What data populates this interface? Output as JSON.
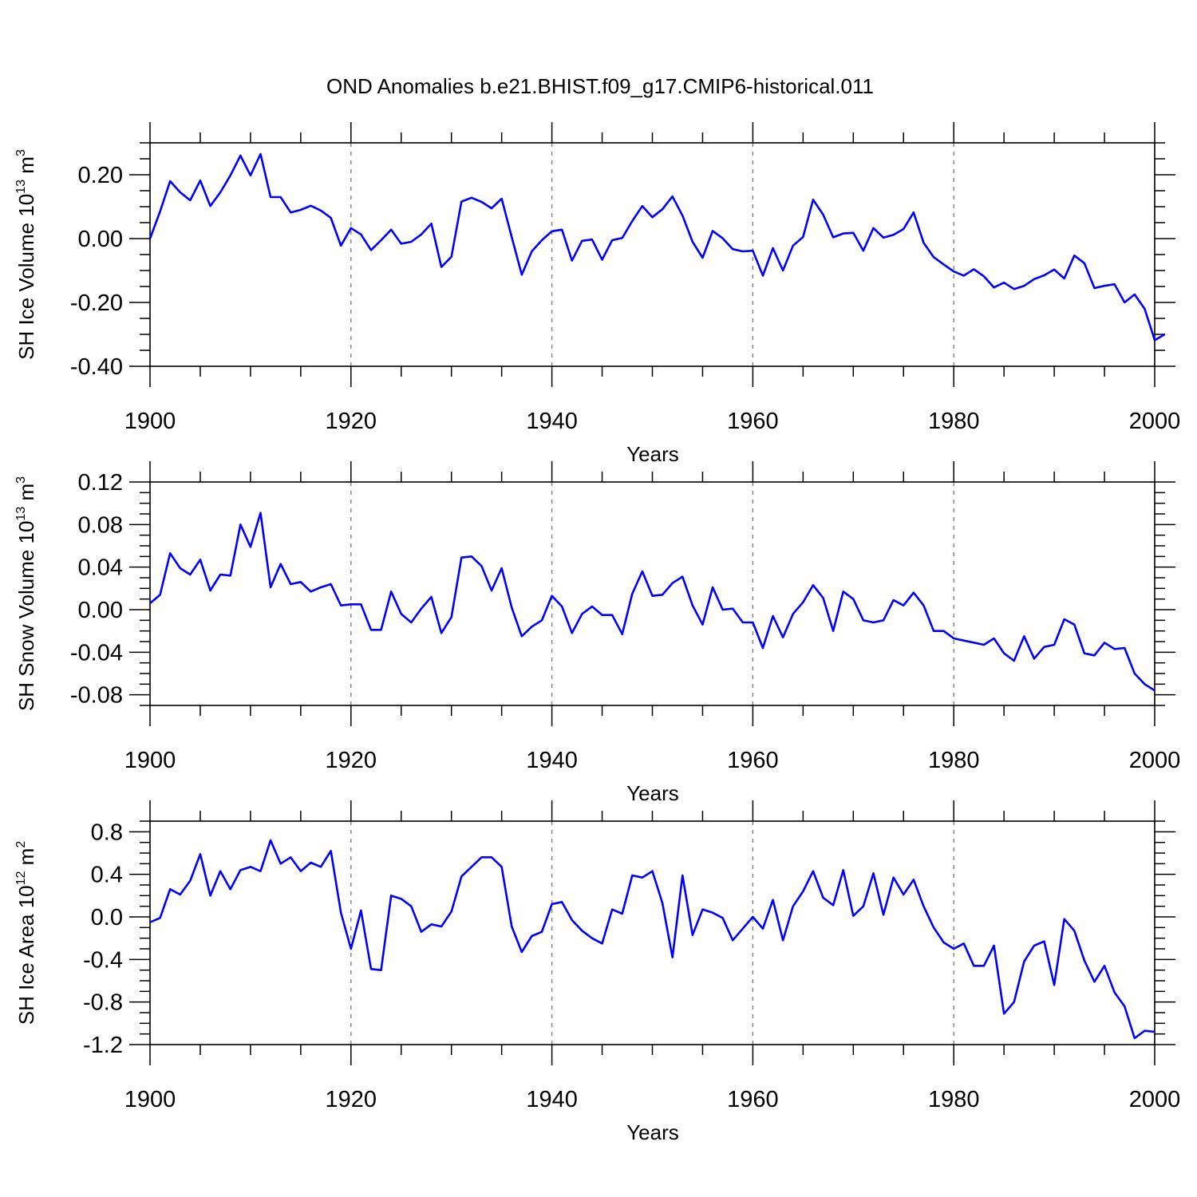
{
  "title": "OND Anomalies b.e21.BHIST.f09_g17.CMIP6-historical.011",
  "colors": {
    "series": "#0000ff",
    "axis": "#000000",
    "grid": "#777777"
  },
  "chart_data": [
    {
      "type": "line",
      "ylabel": {
        "main": "SH Ice Volume 10",
        "exp": "13",
        "unit": " m",
        "unit_exp": "3"
      },
      "xlabel": "Years",
      "xlim": [
        1900,
        2000
      ],
      "ylim": [
        -0.4,
        0.3
      ],
      "yticks": [
        -0.4,
        -0.2,
        0.0,
        0.2
      ],
      "ytick_labels": [
        "-0.40",
        "-0.20",
        "0.00",
        "0.20"
      ],
      "xticks": [
        1900,
        1920,
        1940,
        1960,
        1980,
        2000
      ],
      "xtick_labels": [
        "1900",
        "1920",
        "1940",
        "1960",
        "1980",
        "2000"
      ],
      "grid_x": [
        1920,
        1940,
        1960,
        1980
      ],
      "x_start": 1900,
      "values": [
        0.0,
        0.085,
        0.18,
        0.145,
        0.12,
        0.182,
        0.102,
        0.145,
        0.198,
        0.26,
        0.198,
        0.265,
        0.13,
        0.13,
        0.082,
        0.09,
        0.103,
        0.088,
        0.065,
        -0.022,
        0.033,
        0.013,
        -0.036,
        -0.005,
        0.028,
        -0.016,
        -0.01,
        0.013,
        0.047,
        -0.089,
        -0.057,
        0.116,
        0.128,
        0.115,
        0.095,
        0.125,
        0.005,
        -0.113,
        -0.04,
        -0.005,
        0.023,
        0.028,
        -0.069,
        -0.007,
        -0.003,
        -0.066,
        -0.005,
        0.002,
        0.055,
        0.102,
        0.067,
        0.092,
        0.132,
        0.072,
        -0.01,
        -0.06,
        0.024,
        0.001,
        -0.033,
        -0.04,
        -0.038,
        -0.116,
        -0.03,
        -0.1,
        -0.022,
        0.005,
        0.122,
        0.075,
        0.004,
        0.016,
        0.018,
        -0.038,
        0.033,
        0.003,
        0.012,
        0.03,
        0.082,
        -0.013,
        -0.058,
        -0.081,
        -0.103,
        -0.116,
        -0.096,
        -0.118,
        -0.153,
        -0.138,
        -0.158,
        -0.148,
        -0.127,
        -0.115,
        -0.097,
        -0.125,
        -0.053,
        -0.077,
        -0.155,
        -0.148,
        -0.143,
        -0.2,
        -0.175,
        -0.22,
        -0.318,
        -0.3
      ]
    },
    {
      "type": "line",
      "ylabel": {
        "main": "SH Snow Volume 10",
        "exp": "13",
        "unit": " m",
        "unit_exp": "3"
      },
      "xlabel": "Years",
      "xlim": [
        1900,
        2000
      ],
      "ylim": [
        -0.09,
        0.12
      ],
      "yticks": [
        -0.08,
        -0.04,
        0.0,
        0.04,
        0.08,
        0.12
      ],
      "ytick_labels": [
        "-0.08",
        "-0.04",
        "0.00",
        "0.04",
        "0.08",
        "0.12"
      ],
      "xticks": [
        1900,
        1920,
        1940,
        1960,
        1980,
        2000
      ],
      "xtick_labels": [
        "1900",
        "1920",
        "1940",
        "1960",
        "1980",
        "2000"
      ],
      "grid_x": [
        1920,
        1940,
        1960,
        1980
      ],
      "x_start": 1900,
      "values": [
        0.006,
        0.014,
        0.053,
        0.039,
        0.033,
        0.047,
        0.018,
        0.033,
        0.032,
        0.08,
        0.059,
        0.091,
        0.021,
        0.043,
        0.024,
        0.026,
        0.017,
        0.021,
        0.024,
        0.004,
        0.005,
        0.005,
        -0.019,
        -0.019,
        0.017,
        -0.004,
        -0.012,
        0.001,
        0.012,
        -0.022,
        -0.007,
        0.049,
        0.05,
        0.041,
        0.018,
        0.039,
        0.002,
        -0.025,
        -0.016,
        -0.01,
        0.013,
        0.003,
        -0.022,
        -0.004,
        0.003,
        -0.005,
        -0.005,
        -0.023,
        0.015,
        0.036,
        0.013,
        0.014,
        0.025,
        0.031,
        0.004,
        -0.014,
        0.021,
        0.0,
        0.001,
        -0.012,
        -0.012,
        -0.036,
        -0.006,
        -0.026,
        -0.004,
        0.007,
        0.023,
        0.011,
        -0.02,
        0.017,
        0.01,
        -0.01,
        -0.012,
        -0.01,
        0.009,
        0.004,
        0.016,
        0.004,
        -0.02,
        -0.02,
        -0.027,
        -0.029,
        -0.031,
        -0.033,
        -0.027,
        -0.041,
        -0.048,
        -0.025,
        -0.046,
        -0.035,
        -0.033,
        -0.009,
        -0.014,
        -0.041,
        -0.043,
        -0.031,
        -0.037,
        -0.036,
        -0.06,
        -0.07,
        -0.076
      ]
    },
    {
      "type": "line",
      "ylabel": {
        "main": "SH Ice Area 10",
        "exp": "12",
        "unit": " m",
        "unit_exp": "2"
      },
      "xlabel": "Years",
      "xlim": [
        1900,
        2000
      ],
      "ylim": [
        -1.2,
        0.9
      ],
      "yticks": [
        -1.2,
        -0.8,
        -0.4,
        0.0,
        0.4,
        0.8
      ],
      "ytick_labels": [
        "-1.2",
        "-0.8",
        "-0.4",
        "0.0",
        "0.4",
        "0.8"
      ],
      "xticks": [
        1900,
        1920,
        1940,
        1960,
        1980,
        2000
      ],
      "xtick_labels": [
        "1900",
        "1920",
        "1940",
        "1960",
        "1980",
        "2000"
      ],
      "grid_x": [
        1920,
        1940,
        1960,
        1980
      ],
      "x_start": 1900,
      "values": [
        -0.05,
        -0.01,
        0.26,
        0.21,
        0.34,
        0.59,
        0.2,
        0.43,
        0.26,
        0.44,
        0.47,
        0.43,
        0.72,
        0.5,
        0.56,
        0.43,
        0.51,
        0.47,
        0.62,
        0.04,
        -0.3,
        0.06,
        -0.49,
        -0.5,
        0.2,
        0.17,
        0.1,
        -0.14,
        -0.07,
        -0.09,
        0.05,
        0.38,
        0.47,
        0.56,
        0.56,
        0.47,
        -0.09,
        -0.33,
        -0.18,
        -0.14,
        0.12,
        0.14,
        -0.03,
        -0.13,
        -0.2,
        -0.25,
        0.07,
        0.03,
        0.39,
        0.37,
        0.43,
        0.13,
        -0.38,
        0.39,
        -0.17,
        0.07,
        0.04,
        -0.01,
        -0.22,
        -0.11,
        0.0,
        -0.11,
        0.16,
        -0.22,
        0.1,
        0.24,
        0.43,
        0.18,
        0.11,
        0.44,
        0.01,
        0.1,
        0.41,
        0.02,
        0.37,
        0.21,
        0.35,
        0.1,
        -0.1,
        -0.24,
        -0.3,
        -0.25,
        -0.46,
        -0.46,
        -0.27,
        -0.91,
        -0.8,
        -0.42,
        -0.27,
        -0.23,
        -0.64,
        -0.02,
        -0.13,
        -0.41,
        -0.61,
        -0.46,
        -0.71,
        -0.84,
        -1.14,
        -1.07,
        -1.08
      ]
    }
  ]
}
